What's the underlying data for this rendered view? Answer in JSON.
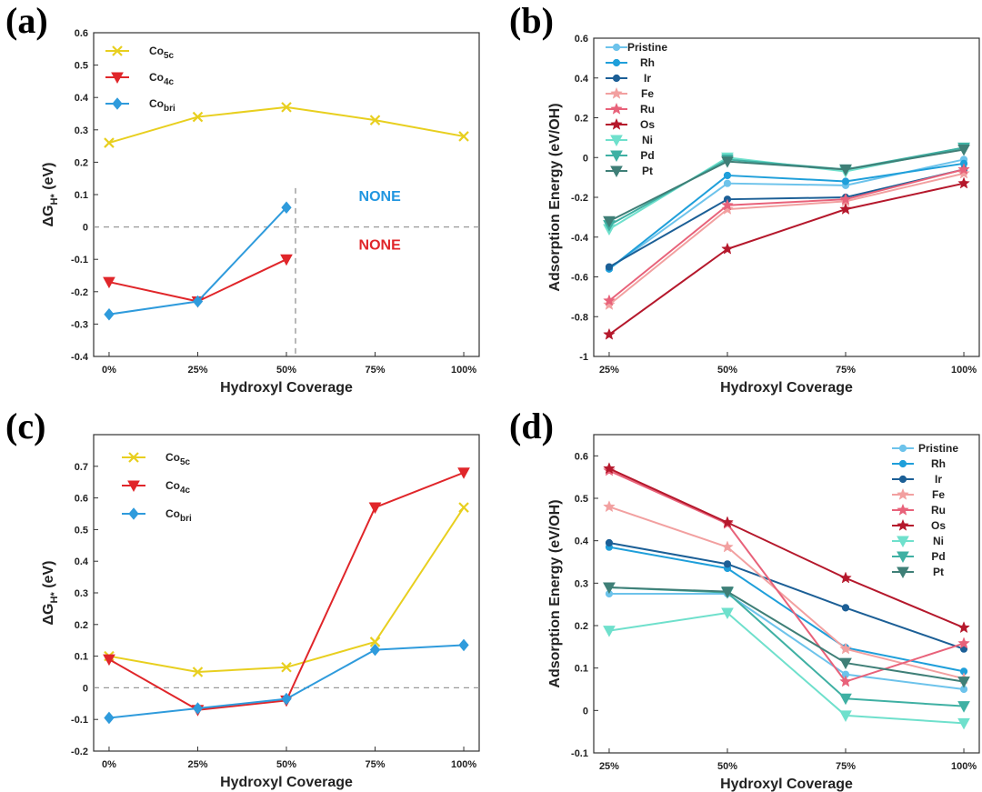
{
  "panel_labels": {
    "a": "(a)",
    "b": "(b)",
    "c": "(c)",
    "d": "(d)"
  },
  "colors": {
    "co5c": "#e8cf1f",
    "co4c": "#e0262a",
    "cobri": "#2f9bdc",
    "pristine": "#6dc3eb",
    "rh": "#1f9fda",
    "ir": "#1c5f96",
    "fe": "#f2a0a0",
    "ru": "#e8627a",
    "os": "#b5182c",
    "ni": "#6fe0cc",
    "pd": "#3fb0a3",
    "pt": "#3f7f77",
    "none_blue": "#2196e0",
    "none_red": "#e0262a"
  },
  "chart_data": [
    {
      "id": "a",
      "type": "line",
      "title": "",
      "xlabel": "Hydroxyl Coverage",
      "ylabel": "ΔG",
      "ylabel_sub": "H*",
      "ylabel_unit": " (eV)",
      "categories": [
        "0%",
        "25%",
        "50%",
        "75%",
        "100%"
      ],
      "ylim": [
        -0.4,
        0.6
      ],
      "yticks": [
        "-0.4",
        "-0.3",
        "-0.2",
        "-0.1",
        "0",
        "0.1",
        "0.2",
        "0.3",
        "0.4",
        "0.5",
        "0.6"
      ],
      "series": [
        {
          "name": "Co",
          "sub": "5c",
          "color": "#e8cf1f",
          "marker": "x",
          "values": [
            0.26,
            0.34,
            0.37,
            0.33,
            0.28
          ]
        },
        {
          "name": "Co",
          "sub": "4c",
          "color": "#e0262a",
          "marker": "tri",
          "values": [
            -0.17,
            -0.23,
            -0.1,
            null,
            null
          ]
        },
        {
          "name": "Co",
          "sub": "bri",
          "color": "#2f9bdc",
          "marker": "diamond",
          "values": [
            -0.27,
            -0.23,
            0.06,
            null,
            null
          ]
        }
      ],
      "annotations": [
        {
          "text": "NONE",
          "color": "#2196e0",
          "x_cat": 2.95,
          "y": 0.08
        },
        {
          "text": "NONE",
          "color": "#e0262a",
          "x_cat": 2.95,
          "y": -0.07
        }
      ]
    },
    {
      "id": "b",
      "type": "line",
      "title": "",
      "xlabel": "Hydroxyl Coverage",
      "ylabel": "Adsorption Energy (eV/OH)",
      "categories": [
        "25%",
        "50%",
        "75%",
        "100%"
      ],
      "ylim": [
        -1,
        0.6
      ],
      "yticks": [
        "-1",
        "-0.8",
        "-0.6",
        "-0.4",
        "-0.2",
        "0",
        "0.2",
        "0.4",
        "0.6"
      ],
      "series": [
        {
          "name": "Pristine",
          "color": "#6dc3eb",
          "marker": "circle",
          "values": [
            -0.56,
            -0.13,
            -0.14,
            -0.01
          ]
        },
        {
          "name": "Rh",
          "color": "#1f9fda",
          "marker": "circle",
          "values": [
            -0.56,
            -0.09,
            -0.12,
            -0.03
          ]
        },
        {
          "name": "Ir",
          "color": "#1c5f96",
          "marker": "circle",
          "values": [
            -0.55,
            -0.21,
            -0.2,
            -0.06
          ]
        },
        {
          "name": "Fe",
          "color": "#f2a0a0",
          "marker": "star",
          "values": [
            -0.74,
            -0.26,
            -0.22,
            -0.08
          ]
        },
        {
          "name": "Ru",
          "color": "#e8627a",
          "marker": "star",
          "values": [
            -0.72,
            -0.24,
            -0.21,
            -0.06
          ]
        },
        {
          "name": "Os",
          "color": "#b5182c",
          "marker": "star",
          "values": [
            -0.89,
            -0.46,
            -0.26,
            -0.13
          ]
        },
        {
          "name": "Ni",
          "color": "#6fe0cc",
          "marker": "tri",
          "values": [
            -0.36,
            0.0,
            -0.07,
            0.05
          ]
        },
        {
          "name": "Pd",
          "color": "#3fb0a3",
          "marker": "tri",
          "values": [
            -0.34,
            -0.01,
            -0.06,
            0.05
          ]
        },
        {
          "name": "Pt",
          "color": "#3f7f77",
          "marker": "tri",
          "values": [
            -0.32,
            -0.02,
            -0.06,
            0.04
          ]
        }
      ]
    },
    {
      "id": "c",
      "type": "line",
      "title": "",
      "xlabel": "Hydroxyl Coverage",
      "ylabel": "ΔG",
      "ylabel_sub": "H*",
      "ylabel_unit": " (eV)",
      "categories": [
        "0%",
        "25%",
        "50%",
        "75%",
        "100%"
      ],
      "ylim": [
        -0.2,
        0.8
      ],
      "yticks": [
        "-0.2",
        "-0.1",
        "0",
        "0.1",
        "0.2",
        "0.3",
        "0.4",
        "0.5",
        "0.6",
        "0.7"
      ],
      "series": [
        {
          "name": "Co",
          "sub": "5c",
          "color": "#e8cf1f",
          "marker": "x",
          "values": [
            0.1,
            0.05,
            0.065,
            0.145,
            0.57
          ]
        },
        {
          "name": "Co",
          "sub": "4c",
          "color": "#e0262a",
          "marker": "tri",
          "values": [
            0.09,
            -0.07,
            -0.04,
            0.57,
            0.68
          ]
        },
        {
          "name": "Co",
          "sub": "bri",
          "color": "#2f9bdc",
          "marker": "diamond",
          "values": [
            -0.095,
            -0.065,
            -0.035,
            0.12,
            0.135
          ]
        }
      ]
    },
    {
      "id": "d",
      "type": "line",
      "title": "",
      "xlabel": "Hydroxyl Coverage",
      "ylabel": "Adsorption Energy (eV/OH)",
      "categories": [
        "25%",
        "50%",
        "75%",
        "100%"
      ],
      "ylim": [
        -0.1,
        0.65
      ],
      "yticks": [
        "-0.1",
        "0",
        "0.1",
        "0.2",
        "0.3",
        "0.4",
        "0.5",
        "0.6"
      ],
      "series": [
        {
          "name": "Pristine",
          "color": "#6dc3eb",
          "marker": "circle",
          "values": [
            0.275,
            0.275,
            0.085,
            0.05
          ]
        },
        {
          "name": "Rh",
          "color": "#1f9fda",
          "marker": "circle",
          "values": [
            0.385,
            0.335,
            0.148,
            0.092
          ]
        },
        {
          "name": "Ir",
          "color": "#1c5f96",
          "marker": "circle",
          "values": [
            0.395,
            0.345,
            0.242,
            0.145
          ]
        },
        {
          "name": "Fe",
          "color": "#f2a0a0",
          "marker": "star",
          "values": [
            0.48,
            0.385,
            0.145,
            0.075
          ]
        },
        {
          "name": "Ru",
          "color": "#e8627a",
          "marker": "star",
          "values": [
            0.565,
            0.44,
            0.068,
            0.158
          ]
        },
        {
          "name": "Os",
          "color": "#b5182c",
          "marker": "star",
          "values": [
            0.57,
            0.443,
            0.312,
            0.195
          ]
        },
        {
          "name": "Ni",
          "color": "#6fe0cc",
          "marker": "tri",
          "values": [
            0.188,
            0.23,
            -0.012,
            -0.03
          ]
        },
        {
          "name": "Pd",
          "color": "#3fb0a3",
          "marker": "tri",
          "values": [
            0.29,
            0.278,
            0.028,
            0.01
          ]
        },
        {
          "name": "Pt",
          "color": "#3f7f77",
          "marker": "tri",
          "values": [
            0.29,
            0.28,
            0.112,
            0.068
          ]
        }
      ]
    }
  ]
}
